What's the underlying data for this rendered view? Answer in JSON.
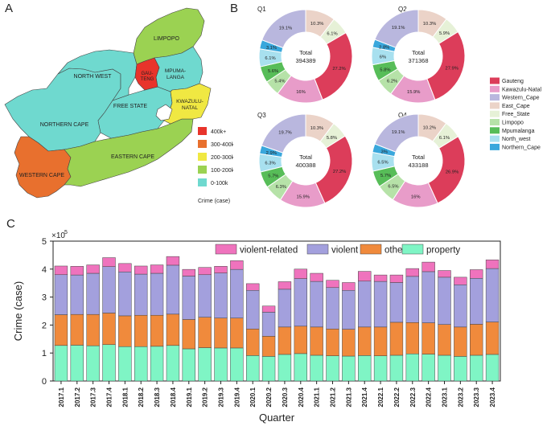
{
  "panels": {
    "a": "A",
    "b": "B",
    "c": "C"
  },
  "map": {
    "legend_title": "Crime (case)",
    "legend": [
      {
        "label": "400k+",
        "color": "#e8342b"
      },
      {
        "label": "300-400k",
        "color": "#e8702e"
      },
      {
        "label": "200-300k",
        "color": "#f0e842"
      },
      {
        "label": "100-200k",
        "color": "#9bd252"
      },
      {
        "label": "0-100k",
        "color": "#6fd9cf"
      }
    ],
    "provinces": {
      "limpopo": "LIMPOPO",
      "north_west": "NORTH WEST",
      "gauteng": "GAU-\nTENG",
      "mpumalanga1": "MPUMA-",
      "mpumalanga2": "LANGA",
      "free_state": "FREE STATE",
      "kzn1": "KWAZULU-",
      "kzn2": "NATAL",
      "northern_cape": "NORTHERN CAPE",
      "eastern_cape": "EASTERN CAPE",
      "western_cape": "WESTERN CAPE",
      "gau1": "GAU-",
      "gau2": "TENG"
    }
  },
  "donuts": {
    "legend": [
      {
        "label": "Gauteng",
        "color": "#dc3d5a"
      },
      {
        "label": "Kawazulu-Natal",
        "color": "#e89cc9"
      },
      {
        "label": "Western_Cape",
        "color": "#b9b7de"
      },
      {
        "label": "East_Cape",
        "color": "#ebd3c8"
      },
      {
        "label": "Free_State",
        "color": "#e6f1d7"
      },
      {
        "label": "Limpopo",
        "color": "#b6e2a8"
      },
      {
        "label": "Mpumalanga",
        "color": "#57bd58"
      },
      {
        "label": "North_west",
        "color": "#a8e0ef"
      },
      {
        "label": "Northern_Cape",
        "color": "#39a7dc"
      }
    ]
  },
  "chart_data": [
    {
      "type": "pie",
      "title": "Q1",
      "center_label": "Total",
      "total": "394389",
      "categories": [
        "Gauteng",
        "Kawazulu-Natal",
        "Western_Cape",
        "East_Cape",
        "Free_State",
        "Limpopo",
        "Mpumalanga",
        "North_west",
        "Northern_Cape"
      ],
      "values": [
        27.2,
        16,
        19.1,
        10.3,
        6.1,
        5.4,
        5.6,
        6.1,
        3.1
      ],
      "labels": [
        "27.2%",
        "16%",
        "19.1%",
        "10.3%",
        "6.1%",
        "5.4%",
        "5.6%",
        "6.1%",
        "3.1%"
      ]
    },
    {
      "type": "pie",
      "title": "Q2",
      "center_label": "Total",
      "total": "371368",
      "categories": [
        "Gauteng",
        "Kawazulu-Natal",
        "Western_Cape",
        "East_Cape",
        "Free_State",
        "Limpopo",
        "Mpumalanga",
        "North_west",
        "Northern_Cape"
      ],
      "values": [
        27.9,
        15.9,
        19.1,
        10.3,
        5.9,
        6.2,
        5.8,
        6.0,
        2.8
      ],
      "labels": [
        "27.9%",
        "15.9%",
        "19.1%",
        "10.3%",
        "5.9%",
        "6.2%",
        "5.8%",
        "6%",
        "2.8%"
      ]
    },
    {
      "type": "pie",
      "title": "Q3",
      "center_label": "Total",
      "total": "400388",
      "categories": [
        "Gauteng",
        "Kawazulu-Natal",
        "Western_Cape",
        "East_Cape",
        "Free_State",
        "Limpopo",
        "Mpumalanga",
        "North_west",
        "Northern_Cape"
      ],
      "values": [
        27.2,
        15.9,
        19.7,
        10.3,
        5.8,
        6.3,
        5.7,
        6.3,
        2.9
      ],
      "labels": [
        "27.2%",
        "15.9%",
        "19.7%",
        "10.3%",
        "5.8%",
        "6.3%",
        "5.7%",
        "6.3%",
        "2.9%"
      ]
    },
    {
      "type": "pie",
      "title": "Q4",
      "center_label": "Total",
      "total": "433188",
      "categories": [
        "Gauteng",
        "Kawazulu-Natal",
        "Western_Cape",
        "East_Cape",
        "Free_State",
        "Limpopo",
        "Mpumalanga",
        "North_west",
        "Northern_Cape"
      ],
      "values": [
        26.9,
        16,
        19.1,
        10.2,
        6.1,
        6.5,
        5.7,
        6.5,
        3.0
      ],
      "labels": [
        "26.9%",
        "16%",
        "19.1%",
        "10.2%",
        "6.1%",
        "6.5%",
        "5.7%",
        "6.5%",
        "3%"
      ]
    },
    {
      "type": "bar",
      "stacked": true,
      "xlabel": "Quarter",
      "ylabel": "Crime (case)",
      "y_multiplier": "×10",
      "y_multiplier_exp": "5",
      "ylim": [
        0,
        5
      ],
      "yticks": [
        "0",
        "1",
        "2",
        "3",
        "4",
        "5"
      ],
      "categories": [
        "2017.1",
        "2017.2",
        "2017.3",
        "2017.4",
        "2018.1",
        "2018.2",
        "2018.3",
        "2018.4",
        "2019.1",
        "2019.2",
        "2019.3",
        "2019.4",
        "2020.1",
        "2020.2",
        "2020.3",
        "2020.4",
        "2021.1",
        "2021.2",
        "2021.3",
        "2021.4",
        "2022.1",
        "2022.2",
        "2022.3",
        "2022.4",
        "2023.1",
        "2023.2",
        "2023.3",
        "2023.4"
      ],
      "series": [
        {
          "name": "property",
          "color": "#7ff5c5",
          "values": [
            1.27,
            1.28,
            1.26,
            1.3,
            1.23,
            1.23,
            1.24,
            1.27,
            1.15,
            1.19,
            1.18,
            1.18,
            0.91,
            0.88,
            0.95,
            0.98,
            0.92,
            0.9,
            0.89,
            0.91,
            0.9,
            0.92,
            0.97,
            0.96,
            0.92,
            0.88,
            0.92,
            0.95
          ]
        },
        {
          "name": "other",
          "color": "#f08a3c",
          "values": [
            1.1,
            1.1,
            1.12,
            1.13,
            1.1,
            1.12,
            1.11,
            1.12,
            1.05,
            1.09,
            1.07,
            1.07,
            0.95,
            0.72,
            0.98,
            0.98,
            1.01,
            0.96,
            0.96,
            1.02,
            1.03,
            1.18,
            1.12,
            1.12,
            1.1,
            1.05,
            1.11,
            1.16
          ]
        },
        {
          "name": "violent",
          "color": "#a3a0dd",
          "values": [
            1.43,
            1.41,
            1.47,
            1.66,
            1.57,
            1.47,
            1.5,
            1.75,
            1.55,
            1.52,
            1.61,
            1.74,
            1.38,
            0.86,
            1.35,
            1.7,
            1.63,
            1.48,
            1.39,
            1.64,
            1.63,
            1.42,
            1.65,
            1.83,
            1.69,
            1.51,
            1.64,
            1.91
          ]
        },
        {
          "name": "violent-related",
          "color": "#ef73bd",
          "values": [
            0.31,
            0.31,
            0.3,
            0.32,
            0.3,
            0.29,
            0.3,
            0.31,
            0.24,
            0.26,
            0.24,
            0.31,
            0.24,
            0.22,
            0.27,
            0.34,
            0.29,
            0.26,
            0.28,
            0.35,
            0.23,
            0.27,
            0.28,
            0.34,
            0.24,
            0.27,
            0.31,
            0.31
          ]
        }
      ],
      "legend": [
        "violent-related",
        "violent",
        "other",
        "property"
      ]
    }
  ]
}
